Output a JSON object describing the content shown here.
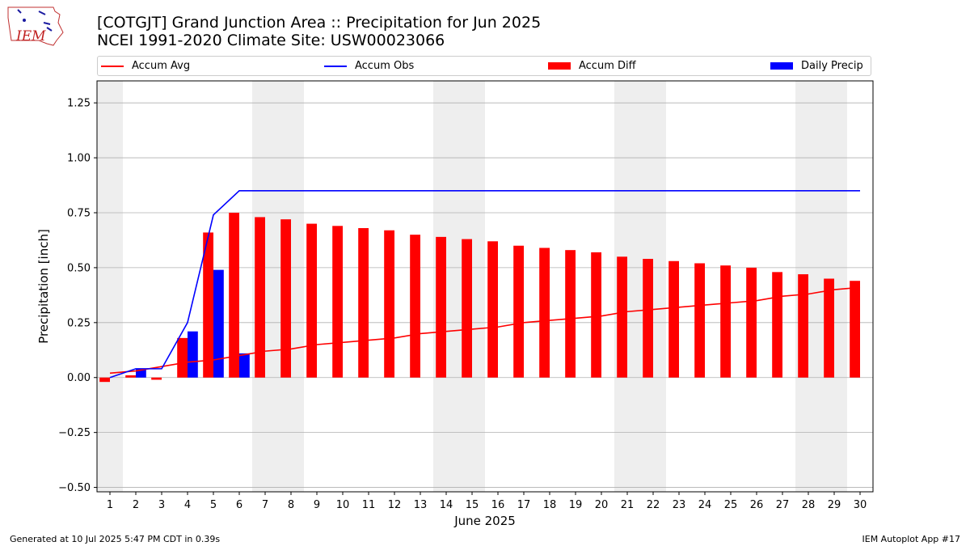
{
  "header": {
    "title_line1": "[COTGJT] Grand Junction Area :: Precipitation for Jun 2025",
    "title_line2": "NCEI 1991-2020 Climate Site: USW00023066",
    "logo_text": "IEM"
  },
  "legend": [
    {
      "label": "Accum Avg",
      "kind": "line",
      "color": "#ff0000"
    },
    {
      "label": "Accum Obs",
      "kind": "line",
      "color": "#0000ff"
    },
    {
      "label": "Accum Diff",
      "kind": "bar",
      "color": "#ff0000"
    },
    {
      "label": "Daily Precip",
      "kind": "bar",
      "color": "#0000ff"
    }
  ],
  "footer": {
    "left": "Generated at 10 Jul 2025 5:47 PM CDT in 0.39s",
    "right": "IEM Autoplot App #17"
  },
  "chart_data": {
    "type": "bar",
    "xlabel": "June 2025",
    "ylabel": "Precipitation [inch]",
    "ylim": [
      -0.52,
      1.35
    ],
    "yticks": [
      -0.5,
      -0.25,
      0.0,
      0.25,
      0.5,
      0.75,
      1.0,
      1.25
    ],
    "ytick_labels": [
      "−0.50",
      "−0.25",
      "0.00",
      "0.25",
      "0.50",
      "0.75",
      "1.00",
      "1.25"
    ],
    "x": [
      1,
      2,
      3,
      4,
      5,
      6,
      7,
      8,
      9,
      10,
      11,
      12,
      13,
      14,
      15,
      16,
      17,
      18,
      19,
      20,
      21,
      22,
      23,
      24,
      25,
      26,
      27,
      28,
      29,
      30
    ],
    "weekend_days": [
      1,
      7,
      8,
      14,
      15,
      21,
      22,
      28,
      29
    ],
    "grid": "y",
    "legend_position": "top",
    "series": [
      {
        "name": "Accum Avg",
        "kind": "line",
        "color": "#ff0000",
        "values": [
          0.02,
          0.03,
          0.05,
          0.07,
          0.08,
          0.1,
          0.12,
          0.13,
          0.15,
          0.16,
          0.17,
          0.18,
          0.2,
          0.21,
          0.22,
          0.23,
          0.25,
          0.26,
          0.27,
          0.28,
          0.3,
          0.31,
          0.32,
          0.33,
          0.34,
          0.35,
          0.37,
          0.38,
          0.4,
          0.41
        ]
      },
      {
        "name": "Accum Obs",
        "kind": "line",
        "color": "#0000ff",
        "values": [
          0.0,
          0.04,
          0.04,
          0.25,
          0.74,
          0.85,
          0.85,
          0.85,
          0.85,
          0.85,
          0.85,
          0.85,
          0.85,
          0.85,
          0.85,
          0.85,
          0.85,
          0.85,
          0.85,
          0.85,
          0.85,
          0.85,
          0.85,
          0.85,
          0.85,
          0.85,
          0.85,
          0.85,
          0.85,
          0.85
        ]
      },
      {
        "name": "Accum Diff",
        "kind": "bar",
        "color": "#ff0000",
        "values": [
          -0.02,
          0.01,
          -0.01,
          0.18,
          0.66,
          0.75,
          0.73,
          0.72,
          0.7,
          0.69,
          0.68,
          0.67,
          0.65,
          0.64,
          0.63,
          0.62,
          0.6,
          0.59,
          0.58,
          0.57,
          0.55,
          0.54,
          0.53,
          0.52,
          0.51,
          0.5,
          0.48,
          0.47,
          0.45,
          0.44
        ]
      },
      {
        "name": "Daily Precip",
        "kind": "bar",
        "color": "#0000ff",
        "values": [
          0.0,
          0.04,
          0.0,
          0.21,
          0.49,
          0.11,
          0,
          0,
          0,
          0,
          0,
          0,
          0,
          0,
          0,
          0,
          0,
          0,
          0,
          0,
          0,
          0,
          0,
          0,
          0,
          0,
          0,
          0,
          0,
          0
        ]
      }
    ]
  }
}
